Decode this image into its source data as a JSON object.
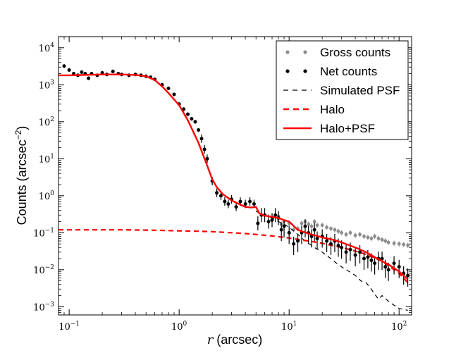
{
  "chart_data": {
    "type": "line",
    "title": "",
    "xlabel": {
      "var": "r",
      "unit": "(arcsec)"
    },
    "ylabel": {
      "text": "Counts (arcsec",
      "exp": "−2",
      "close": ")"
    },
    "xscale": "log",
    "yscale": "log",
    "xlim": [
      0.08,
      130
    ],
    "ylim": [
      0.0006,
      20000
    ],
    "xticks": [
      {
        "value": 0.1,
        "base": "10",
        "exp": "−1"
      },
      {
        "value": 1,
        "base": "10",
        "exp": "0"
      },
      {
        "value": 10,
        "base": "10",
        "exp": "1"
      },
      {
        "value": 100,
        "base": "10",
        "exp": "2"
      }
    ],
    "yticks": [
      {
        "value": 0.001,
        "base": "10",
        "exp": "−3"
      },
      {
        "value": 0.01,
        "base": "10",
        "exp": "−2"
      },
      {
        "value": 0.1,
        "base": "10",
        "exp": "−1"
      },
      {
        "value": 1,
        "base": "10",
        "exp": "0"
      },
      {
        "value": 10,
        "base": "10",
        "exp": "1"
      },
      {
        "value": 100,
        "base": "10",
        "exp": "2"
      },
      {
        "value": 1000,
        "base": "10",
        "exp": "3"
      },
      {
        "value": 10000,
        "base": "10",
        "exp": "4"
      }
    ],
    "legend_position": "upper-right",
    "legend": [
      {
        "key": "gross",
        "label": "Gross counts"
      },
      {
        "key": "net",
        "label": "Net counts"
      },
      {
        "key": "psf",
        "label": "Simulated PSF"
      },
      {
        "key": "halo",
        "label": "Halo"
      },
      {
        "key": "halopsf",
        "label": "Halo+PSF"
      }
    ],
    "colors": {
      "gross": "#8c8c8c",
      "net": "#000000",
      "psf": "#000000",
      "halo": "#ff0000",
      "halopsf": "#ff0000"
    },
    "series": [
      {
        "key": "halopsf",
        "name": "Halo+PSF",
        "style": "solid",
        "x": [
          0.08,
          0.1,
          0.2,
          0.3,
          0.4,
          0.5,
          0.6,
          0.7,
          0.8,
          1.0,
          1.2,
          1.5,
          1.8,
          2.0,
          2.2,
          2.5,
          3.0,
          3.5,
          4.0,
          4.5,
          5.0,
          5.3,
          5.5,
          6.0,
          7.0,
          8.0,
          9.0,
          10,
          12,
          15,
          20,
          25,
          30,
          40,
          50,
          60,
          70,
          80,
          100,
          120
        ],
        "y": [
          1800,
          1800,
          1900,
          1900,
          1850,
          1700,
          1350,
          900,
          600,
          280,
          110,
          27,
          6.5,
          2.8,
          1.7,
          1.1,
          0.75,
          0.6,
          0.5,
          0.48,
          0.5,
          0.35,
          0.32,
          0.29,
          0.27,
          0.25,
          0.22,
          0.2,
          0.12,
          0.095,
          0.075,
          0.065,
          0.055,
          0.04,
          0.03,
          0.022,
          0.017,
          0.014,
          0.009,
          0.0055
        ]
      },
      {
        "key": "halo",
        "name": "Halo",
        "style": "dashed",
        "x": [
          0.08,
          0.1,
          0.2,
          0.3,
          0.5,
          0.7,
          1,
          1.5,
          2,
          3,
          4,
          5,
          7,
          10,
          15,
          20,
          30,
          40,
          50,
          70,
          100,
          120
        ],
        "y": [
          0.12,
          0.12,
          0.12,
          0.12,
          0.118,
          0.116,
          0.113,
          0.11,
          0.107,
          0.1,
          0.095,
          0.09,
          0.082,
          0.072,
          0.06,
          0.052,
          0.04,
          0.032,
          0.026,
          0.017,
          0.008,
          0.0045
        ]
      },
      {
        "key": "psf",
        "name": "Simulated PSF",
        "style": "dashed",
        "x": [
          5,
          6,
          7,
          8,
          9,
          10,
          12,
          14,
          17,
          20,
          23,
          27,
          30,
          35,
          40,
          45,
          50,
          55,
          60,
          65,
          70,
          80,
          90,
          100,
          110,
          120
        ],
        "y": [
          0.38,
          0.3,
          0.25,
          0.2,
          0.17,
          0.14,
          0.09,
          0.06,
          0.04,
          0.03,
          0.022,
          0.015,
          0.012,
          0.009,
          0.007,
          0.005,
          0.0045,
          0.0032,
          0.0022,
          0.0016,
          0.002,
          0.0014,
          0.0011,
          0.0009,
          0.00085,
          0.0008
        ]
      },
      {
        "key": "net",
        "name": "Net counts",
        "style": "points",
        "x": [
          0.09,
          0.1,
          0.11,
          0.12,
          0.13,
          0.14,
          0.15,
          0.16,
          0.18,
          0.2,
          0.22,
          0.25,
          0.28,
          0.3,
          0.35,
          0.4,
          0.45,
          0.5,
          0.55,
          0.6,
          0.7,
          0.8,
          0.9,
          1.0,
          1.1,
          1.2,
          1.3,
          1.4,
          1.5,
          1.6,
          1.7,
          1.8,
          2.0,
          2.2,
          2.4,
          2.6,
          2.8,
          3.0,
          3.3,
          3.6,
          4.0,
          4.4,
          4.8,
          5.2,
          5.6,
          6.0,
          6.5,
          7.0,
          7.5,
          8.0,
          8.5,
          9.0,
          10,
          11,
          12,
          13,
          14,
          15,
          16,
          17,
          18,
          20,
          22,
          24,
          26,
          28,
          30,
          33,
          36,
          40,
          44,
          48,
          52,
          56,
          60,
          65,
          70,
          75,
          80,
          90,
          100,
          110,
          120
        ],
        "y": [
          3200,
          2500,
          2000,
          1800,
          2200,
          2000,
          1500,
          2000,
          1800,
          2100,
          1900,
          2300,
          2000,
          1900,
          1800,
          1900,
          1800,
          1700,
          1600,
          1400,
          1000,
          800,
          550,
          300,
          220,
          160,
          120,
          100,
          60,
          35,
          18,
          10,
          2.5,
          1.2,
          1.0,
          0.7,
          0.6,
          0.8,
          0.5,
          0.7,
          0.6,
          0.7,
          0.6,
          0.18,
          0.3,
          0.3,
          0.2,
          0.22,
          0.3,
          0.25,
          0.12,
          0.15,
          0.1,
          0.05,
          0.06,
          0.1,
          0.15,
          0.1,
          0.08,
          0.12,
          0.07,
          0.08,
          0.06,
          0.05,
          0.06,
          0.045,
          0.04,
          0.03,
          0.035,
          0.025,
          0.03,
          0.02,
          0.022,
          0.018,
          0.015,
          0.02,
          0.02,
          0.012,
          0.01,
          0.015,
          0.012,
          0.008,
          0.007
        ]
      },
      {
        "key": "gross",
        "name": "Gross counts",
        "style": "points",
        "x": [
          8.0,
          8.5,
          9.0,
          10,
          11,
          12,
          13,
          14,
          15,
          16,
          17,
          18,
          20,
          22,
          24,
          26,
          28,
          30,
          33,
          36,
          40,
          44,
          48,
          52,
          56,
          60,
          65,
          70,
          75,
          80,
          90,
          100,
          110,
          120
        ],
        "y": [
          0.28,
          0.17,
          0.2,
          0.18,
          0.12,
          0.13,
          0.18,
          0.2,
          0.17,
          0.15,
          0.2,
          0.16,
          0.16,
          0.14,
          0.13,
          0.12,
          0.11,
          0.1,
          0.09,
          0.1,
          0.085,
          0.09,
          0.08,
          0.075,
          0.07,
          0.08,
          0.07,
          0.065,
          0.06,
          0.055,
          0.052,
          0.05,
          0.048,
          0.046
        ]
      }
    ]
  }
}
